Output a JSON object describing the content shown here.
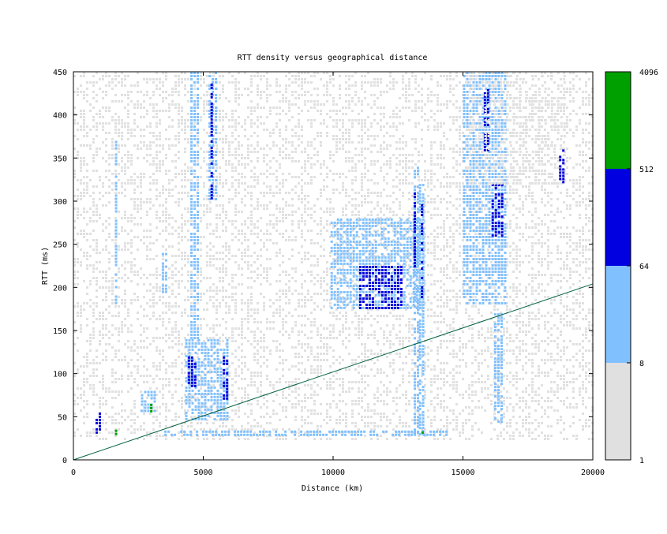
{
  "chart_data": {
    "type": "heatmap",
    "title": "RTT density versus geographical distance",
    "xlabel": "Distance (km)",
    "ylabel": "RTT (ms)",
    "xlim": [
      0,
      20000
    ],
    "ylim": [
      0,
      450
    ],
    "x_ticks": [
      "0",
      "5000",
      "10000",
      "15000",
      "20000"
    ],
    "x_tick_values": [
      0,
      5000,
      10000,
      15000,
      20000
    ],
    "y_ticks": [
      "0",
      "50",
      "100",
      "150",
      "200",
      "250",
      "300",
      "350",
      "400",
      "450"
    ],
    "y_tick_values": [
      0,
      50,
      100,
      150,
      200,
      250,
      300,
      350,
      400,
      450
    ],
    "grid": false,
    "colorbar": {
      "scale": "log",
      "bands": [
        {
          "min": 1,
          "max": 8,
          "color": "#e0e0e0"
        },
        {
          "min": 8,
          "max": 64,
          "color": "#80c0ff"
        },
        {
          "min": 64,
          "max": 512,
          "color": "#0000e0"
        },
        {
          "min": 512,
          "max": 4096,
          "color": "#00a000"
        }
      ],
      "tick_labels": [
        "1",
        "8",
        "64",
        "512",
        "4096"
      ]
    },
    "reference_line": {
      "color": "#006040",
      "points": [
        [
          0,
          0
        ],
        [
          20000,
          204
        ]
      ]
    },
    "density_regions": [
      {
        "x": [
          0,
          20000
        ],
        "y": [
          25,
          450
        ],
        "level": 1
      },
      {
        "x": [
          4300,
          5900
        ],
        "y": [
          45,
          140
        ],
        "level": 2
      },
      {
        "x": [
          4400,
          4700
        ],
        "y": [
          85,
          120
        ],
        "level": 3
      },
      {
        "x": [
          5200,
          5450
        ],
        "y": [
          300,
          450
        ],
        "level": 2
      },
      {
        "x": [
          5280,
          5380
        ],
        "y": [
          300,
          440
        ],
        "level": 3
      },
      {
        "x": [
          5750,
          5900
        ],
        "y": [
          70,
          120
        ],
        "level": 3
      },
      {
        "x": [
          4500,
          4800
        ],
        "y": [
          140,
          450
        ],
        "level": 2
      },
      {
        "x": [
          3400,
          3550
        ],
        "y": [
          190,
          240
        ],
        "level": 2
      },
      {
        "x": [
          1600,
          1700
        ],
        "y": [
          180,
          370
        ],
        "level": 2
      },
      {
        "x": [
          2600,
          3100
        ],
        "y": [
          55,
          80
        ],
        "level": 2
      },
      {
        "x": [
          2950,
          3050
        ],
        "y": [
          55,
          65
        ],
        "level": 4
      },
      {
        "x": [
          850,
          1000
        ],
        "y": [
          30,
          55
        ],
        "level": 3
      },
      {
        "x": [
          1600,
          1700
        ],
        "y": [
          30,
          35
        ],
        "level": 4
      },
      {
        "x": [
          9900,
          13500
        ],
        "y": [
          175,
          280
        ],
        "level": 2
      },
      {
        "x": [
          11000,
          12700
        ],
        "y": [
          175,
          225
        ],
        "level": 3
      },
      {
        "x": [
          13100,
          13250
        ],
        "y": [
          30,
          340
        ],
        "level": 2
      },
      {
        "x": [
          13100,
          13200
        ],
        "y": [
          220,
          310
        ],
        "level": 3
      },
      {
        "x": [
          13300,
          13450
        ],
        "y": [
          30,
          320
        ],
        "level": 2
      },
      {
        "x": [
          13380,
          13450
        ],
        "y": [
          190,
          300
        ],
        "level": 3
      },
      {
        "x": [
          13400,
          13460
        ],
        "y": [
          28,
          33
        ],
        "level": 4
      },
      {
        "x": [
          15000,
          16700
        ],
        "y": [
          180,
          450
        ],
        "level": 2
      },
      {
        "x": [
          16100,
          16500
        ],
        "y": [
          260,
          320
        ],
        "level": 3
      },
      {
        "x": [
          15800,
          16000
        ],
        "y": [
          360,
          430
        ],
        "level": 3
      },
      {
        "x": [
          15100,
          18900
        ],
        "y": [
          320,
          450
        ],
        "level": 1
      },
      {
        "x": [
          18700,
          18900
        ],
        "y": [
          320,
          360
        ],
        "level": 3
      },
      {
        "x": [
          16200,
          16500
        ],
        "y": [
          40,
          170
        ],
        "level": 2
      },
      {
        "x": [
          3500,
          14500
        ],
        "y": [
          28,
          34
        ],
        "level": 2
      }
    ]
  }
}
